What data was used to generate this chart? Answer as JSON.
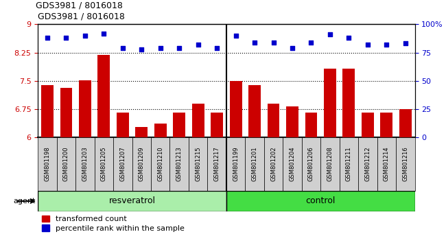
{
  "title": "GDS3981 / 8016018",
  "samples": [
    "GSM801198",
    "GSM801200",
    "GSM801203",
    "GSM801205",
    "GSM801207",
    "GSM801209",
    "GSM801210",
    "GSM801213",
    "GSM801215",
    "GSM801217",
    "GSM801199",
    "GSM801201",
    "GSM801202",
    "GSM801204",
    "GSM801206",
    "GSM801208",
    "GSM801211",
    "GSM801212",
    "GSM801214",
    "GSM801216"
  ],
  "bar_values": [
    7.38,
    7.32,
    7.52,
    8.18,
    6.65,
    6.27,
    6.37,
    6.65,
    6.9,
    6.65,
    7.5,
    7.38,
    6.9,
    6.82,
    6.65,
    7.82,
    7.82,
    6.65,
    6.65,
    6.75
  ],
  "dot_values": [
    88,
    88,
    90,
    92,
    79,
    78,
    79,
    79,
    82,
    79,
    90,
    84,
    84,
    79,
    84,
    91,
    88,
    82,
    82,
    83
  ],
  "resveratrol_count": 10,
  "control_count": 10,
  "ylim_left": [
    6,
    9
  ],
  "ylim_right": [
    0,
    100
  ],
  "yticks_left": [
    6,
    6.75,
    7.5,
    8.25,
    9
  ],
  "yticks_right": [
    0,
    25,
    50,
    75,
    100
  ],
  "ytick_labels_right": [
    "0",
    "25",
    "50",
    "75",
    "100%"
  ],
  "hlines": [
    6.75,
    7.5,
    8.25
  ],
  "bar_color": "#cc0000",
  "dot_color": "#0000cc",
  "resveratrol_color": "#aaeeaa",
  "control_color": "#44dd44",
  "agent_label": "agent",
  "resveratrol_label": "resveratrol",
  "control_label": "control",
  "legend_bar_label": "transformed count",
  "legend_dot_label": "percentile rank within the sample",
  "bg_color": "#d0d0d0",
  "label_fontsize": 8
}
